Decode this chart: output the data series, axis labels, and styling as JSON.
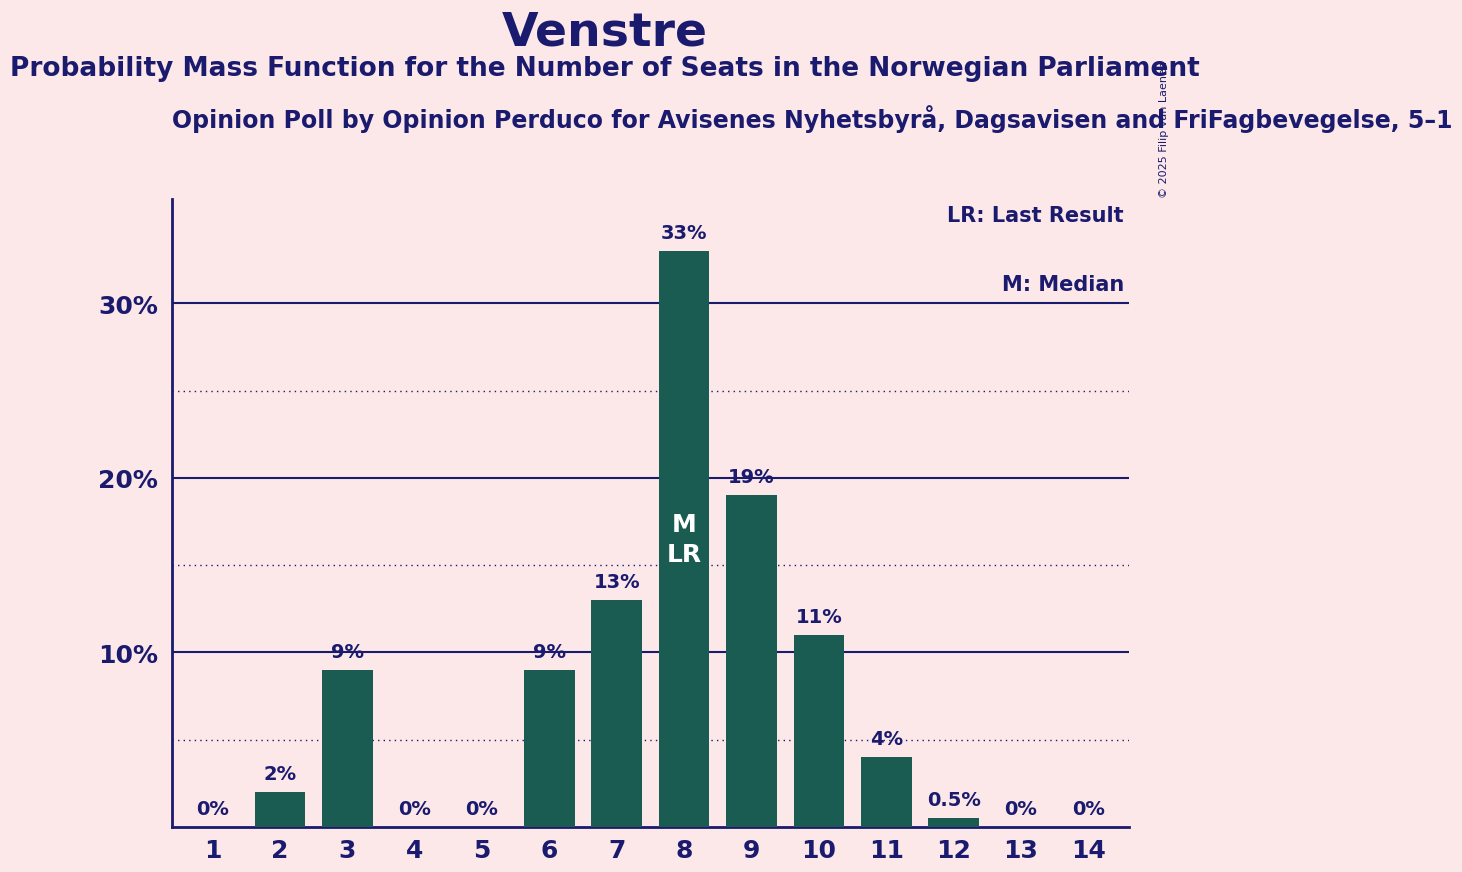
{
  "title": "Venstre",
  "subtitle": "Probability Mass Function for the Number of Seats in the Norwegian Parliament",
  "subsubtitle": "Opinion Poll by Opinion Perduco for Avisenes Nyhetsbyrå, Dagsavisen and FriFagbevegelse, 5–1",
  "copyright": "© 2025 Filip van Laenen",
  "categories": [
    1,
    2,
    3,
    4,
    5,
    6,
    7,
    8,
    9,
    10,
    11,
    12,
    13,
    14
  ],
  "values": [
    0.0,
    2.0,
    9.0,
    0.0,
    0.0,
    9.0,
    13.0,
    33.0,
    19.0,
    11.0,
    4.0,
    0.5,
    0.0,
    0.0
  ],
  "bar_color": "#1a5c52",
  "background_color": "#fce8e8",
  "title_color": "#1a1a6e",
  "bar_labels": [
    "0%",
    "2%",
    "9%",
    "0%",
    "0%",
    "9%",
    "13%",
    "33%",
    "19%",
    "11%",
    "4%",
    "0.5%",
    "0%",
    "0%"
  ],
  "median_bar": 8,
  "lr_bar": 8,
  "ylim": [
    0,
    36
  ],
  "solid_yticks": [
    10,
    20,
    30
  ],
  "dotted_yticks": [
    5,
    15,
    25
  ],
  "legend_lr": "LR: Last Result",
  "legend_m": "M: Median",
  "title_fontsize": 34,
  "subtitle_fontsize": 19,
  "subsubtitle_fontsize": 17,
  "bar_label_fontsize": 14,
  "tick_fontsize": 18
}
